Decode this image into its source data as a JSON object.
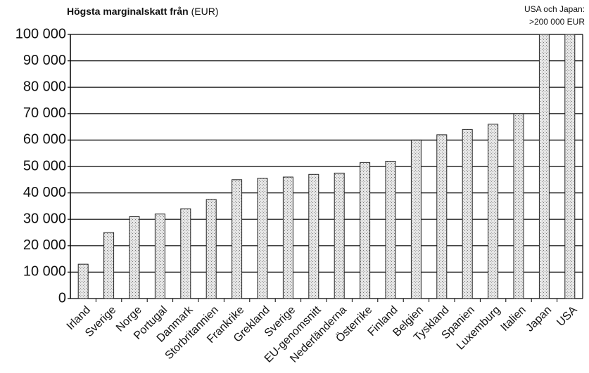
{
  "chart_data": {
    "type": "bar",
    "title": "Högsta marginalskatt från",
    "y_unit": "(EUR)",
    "annotation": [
      "USA och Japan:",
      ">200 000 EUR"
    ],
    "categories": [
      "Irland",
      "Sverige",
      "Norge",
      "Portugal",
      "Danmark",
      "Storbritannien",
      "Frankrike",
      "Grekland",
      "Sverige",
      "EU-genomsnitt",
      "Nederländerna",
      "Österrike",
      "Finland",
      "Belgien",
      "Tyskland",
      "Spanien",
      "Luxemburg",
      "Italien",
      "Japan",
      "USA"
    ],
    "values": [
      13000,
      25000,
      31000,
      32000,
      34000,
      37500,
      45000,
      45500,
      46000,
      47000,
      47500,
      51500,
      52000,
      60000,
      62000,
      64000,
      66000,
      70000,
      100000,
      100000
    ],
    "color": "#d4d4d4",
    "ylim": [
      0,
      100000
    ],
    "yticks": [
      0,
      {
        "value": 10000,
        "label": "10 000"
      },
      {
        "value": 20000,
        "label": "20 000"
      },
      {
        "value": 30000,
        "label": "30 000"
      },
      {
        "value": 40000,
        "label": "40 000"
      },
      {
        "value": 50000,
        "label": "50 000"
      },
      {
        "value": 60000,
        "label": "60 000"
      },
      {
        "value": 70000,
        "label": "70 000"
      },
      {
        "value": 80000,
        "label": "80 000"
      },
      {
        "value": 90000,
        "label": "90 000"
      },
      {
        "value": 100000,
        "label": "100 000"
      }
    ],
    "grid": true
  }
}
